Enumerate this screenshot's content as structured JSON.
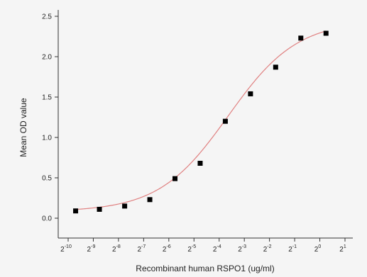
{
  "chart_data": {
    "type": "scatter",
    "xlabel": "Recombinant human RSPO1 (ug/ml)",
    "ylabel": "Mean OD value",
    "x_scale": "log2",
    "x_ticks": [
      {
        "base": "2",
        "exp": "-10"
      },
      {
        "base": "2",
        "exp": "-9"
      },
      {
        "base": "2",
        "exp": "-8"
      },
      {
        "base": "2",
        "exp": "-7"
      },
      {
        "base": "2",
        "exp": "-6"
      },
      {
        "base": "2",
        "exp": "-5"
      },
      {
        "base": "2",
        "exp": "-4"
      },
      {
        "base": "2",
        "exp": "-3"
      },
      {
        "base": "2",
        "exp": "-2"
      },
      {
        "base": "2",
        "exp": "-1"
      },
      {
        "base": "2",
        "exp": "0"
      },
      {
        "base": "2",
        "exp": "1"
      }
    ],
    "y_ticks": [
      "0.0",
      "0.5",
      "1.0",
      "1.5",
      "2.0",
      "2.5"
    ],
    "xlim": [
      0.00097656,
      2
    ],
    "ylim": [
      -0.12,
      2.5
    ],
    "series": [
      {
        "x": [
          0.0012,
          0.00231,
          0.00463,
          0.00926,
          0.01852,
          0.03704,
          0.07407,
          0.14815,
          0.2963,
          0.59259,
          1.18519
        ],
        "y": [
          0.09,
          0.11,
          0.15,
          0.23,
          0.49,
          0.68,
          1.2,
          1.54,
          1.87,
          2.23,
          2.29
        ],
        "color": "#000000",
        "marker": "square"
      }
    ],
    "fit_curve": {
      "model": "four-parameter logistic",
      "bottom": 0.08,
      "top": 2.45,
      "ec50": 0.08,
      "hill": 1.05,
      "color": "#e08080"
    },
    "grid": false,
    "legend": "none"
  }
}
